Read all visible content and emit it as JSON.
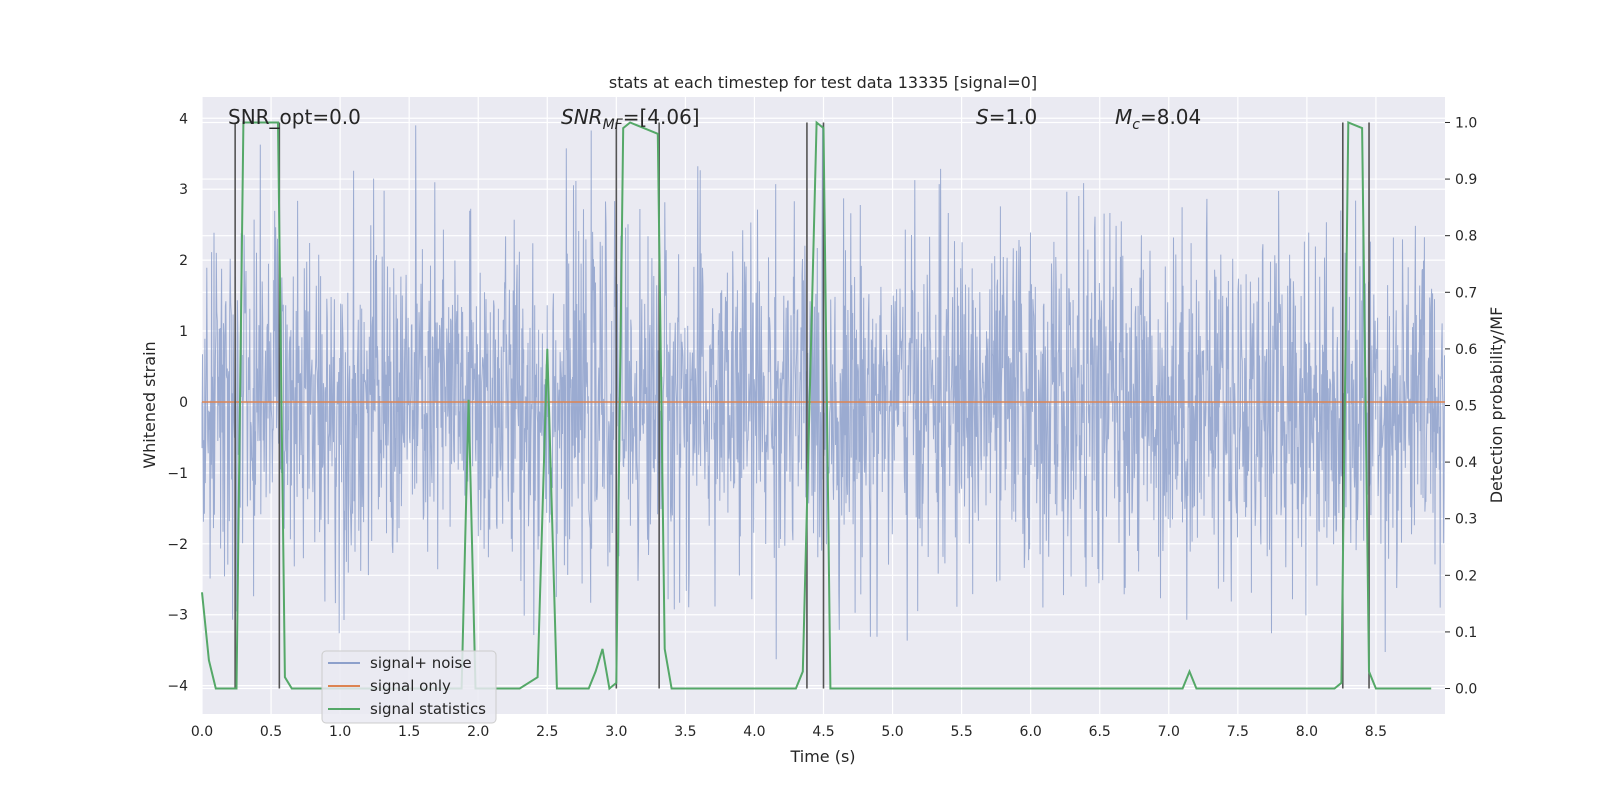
{
  "chart_data": {
    "type": "line",
    "title": "stats at each timestep for test data 13335 [signal=0]",
    "xlabel": "Time (s)",
    "ylabel_left": "Whitened strain",
    "ylabel_right": "Detection probability/MF",
    "xlim": [
      0.0,
      9.0
    ],
    "ylim_left": [
      -4.4,
      4.3
    ],
    "ylim_right": [
      -0.045,
      1.045
    ],
    "x_ticks": [
      0.0,
      0.5,
      1.0,
      1.5,
      2.0,
      2.5,
      3.0,
      3.5,
      4.0,
      4.5,
      5.0,
      5.5,
      6.0,
      6.5,
      7.0,
      7.5,
      8.0,
      8.5
    ],
    "x_tick_labels": [
      "0.0",
      "0.5",
      "1.0",
      "1.5",
      "2.0",
      "2.5",
      "3.0",
      "3.5",
      "4.0",
      "4.5",
      "5.0",
      "5.5",
      "6.0",
      "6.5",
      "7.0",
      "7.5",
      "8.0",
      "8.5"
    ],
    "y_left_ticks": [
      -4,
      -3,
      -2,
      -1,
      0,
      1,
      2,
      3,
      4
    ],
    "y_left_tick_labels": [
      "−4",
      "−3",
      "−2",
      "−1",
      "0",
      "1",
      "2",
      "3",
      "4"
    ],
    "y_right_ticks": [
      0.0,
      0.1,
      0.2,
      0.3,
      0.4,
      0.5,
      0.6,
      0.7,
      0.8,
      0.9,
      1.0
    ],
    "y_right_tick_labels": [
      "0.0",
      "0.1",
      "0.2",
      "0.3",
      "0.4",
      "0.5",
      "0.6",
      "0.7",
      "0.8",
      "0.9",
      "1.0"
    ],
    "annotations": {
      "snr_opt": "SNR_opt=0.0",
      "snr_mf_base": "SNR",
      "snr_mf_sub": "MF",
      "snr_mf_rest": "=[4.06]",
      "s_label": "S",
      "s_rest": "=1.0",
      "mc_base": "M",
      "mc_sub": "c",
      "mc_rest": "=8.04"
    },
    "legend": {
      "position": "lower-left",
      "entries": [
        {
          "label": "signal+ noise",
          "color": "#8da0cb"
        },
        {
          "label": "signal only",
          "color": "#dd8452"
        },
        {
          "label": "signal statistics",
          "color": "#55a868"
        }
      ]
    },
    "series": [
      {
        "name": "signal+ noise",
        "axis": "left",
        "color": "#8da0cb",
        "description": "dense whitened strain noise, amplitude approx within ±3.9",
        "amplitude_core": 1.6,
        "amplitude_max": 3.9
      },
      {
        "name": "signal only",
        "axis": "left",
        "color": "#dd8452",
        "x": [
          0.0,
          9.0
        ],
        "y": [
          0.0,
          0.0
        ]
      },
      {
        "name": "signal statistics",
        "axis": "right",
        "color": "#55a868",
        "x": [
          0.0,
          0.05,
          0.1,
          0.2,
          0.25,
          0.3,
          0.35,
          0.45,
          0.55,
          0.6,
          0.65,
          0.7,
          0.8,
          1.0,
          1.5,
          1.88,
          1.93,
          1.98,
          2.03,
          2.3,
          2.43,
          2.5,
          2.57,
          2.62,
          2.8,
          2.85,
          2.9,
          2.95,
          3.0,
          3.05,
          3.1,
          3.3,
          3.35,
          3.4,
          3.5,
          3.6,
          4.0,
          4.3,
          4.35,
          4.45,
          4.5,
          4.55,
          4.6,
          5.0,
          6.0,
          6.8,
          7.0,
          7.1,
          7.15,
          7.2,
          7.3,
          8.0,
          8.2,
          8.25,
          8.3,
          8.4,
          8.45,
          8.5,
          8.6,
          8.9
        ],
        "y": [
          0.17,
          0.05,
          0.0,
          0.0,
          0.0,
          1.0,
          1.0,
          1.0,
          1.0,
          0.02,
          0.0,
          0.0,
          0.0,
          0.0,
          0.0,
          0.0,
          0.51,
          0.0,
          0.0,
          0.0,
          0.02,
          0.6,
          0.0,
          0.0,
          0.0,
          0.03,
          0.07,
          0.0,
          0.01,
          0.99,
          1.0,
          0.98,
          0.07,
          0.0,
          0.0,
          0.0,
          0.0,
          0.0,
          0.03,
          1.0,
          0.99,
          0.0,
          0.0,
          0.0,
          0.0,
          0.0,
          0.0,
          0.0,
          0.03,
          0.0,
          0.0,
          0.0,
          0.0,
          0.01,
          1.0,
          0.99,
          0.03,
          0.0,
          0.0,
          0.0
        ]
      }
    ],
    "vertical_markers": [
      {
        "x": 0.24,
        "ymin": 0.0,
        "ymax": 1.0
      },
      {
        "x": 0.56,
        "ymin": 0.0,
        "ymax": 1.0
      },
      {
        "x": 3.0,
        "ymin": 0.0,
        "ymax": 1.0
      },
      {
        "x": 3.31,
        "ymin": 0.0,
        "ymax": 1.0
      },
      {
        "x": 4.38,
        "ymin": 0.0,
        "ymax": 1.0
      },
      {
        "x": 4.5,
        "ymin": 0.0,
        "ymax": 1.0
      },
      {
        "x": 8.26,
        "ymin": 0.0,
        "ymax": 1.0
      },
      {
        "x": 8.45,
        "ymin": 0.0,
        "ymax": 1.0
      }
    ],
    "grid": true,
    "background": "#eaeaf2"
  }
}
